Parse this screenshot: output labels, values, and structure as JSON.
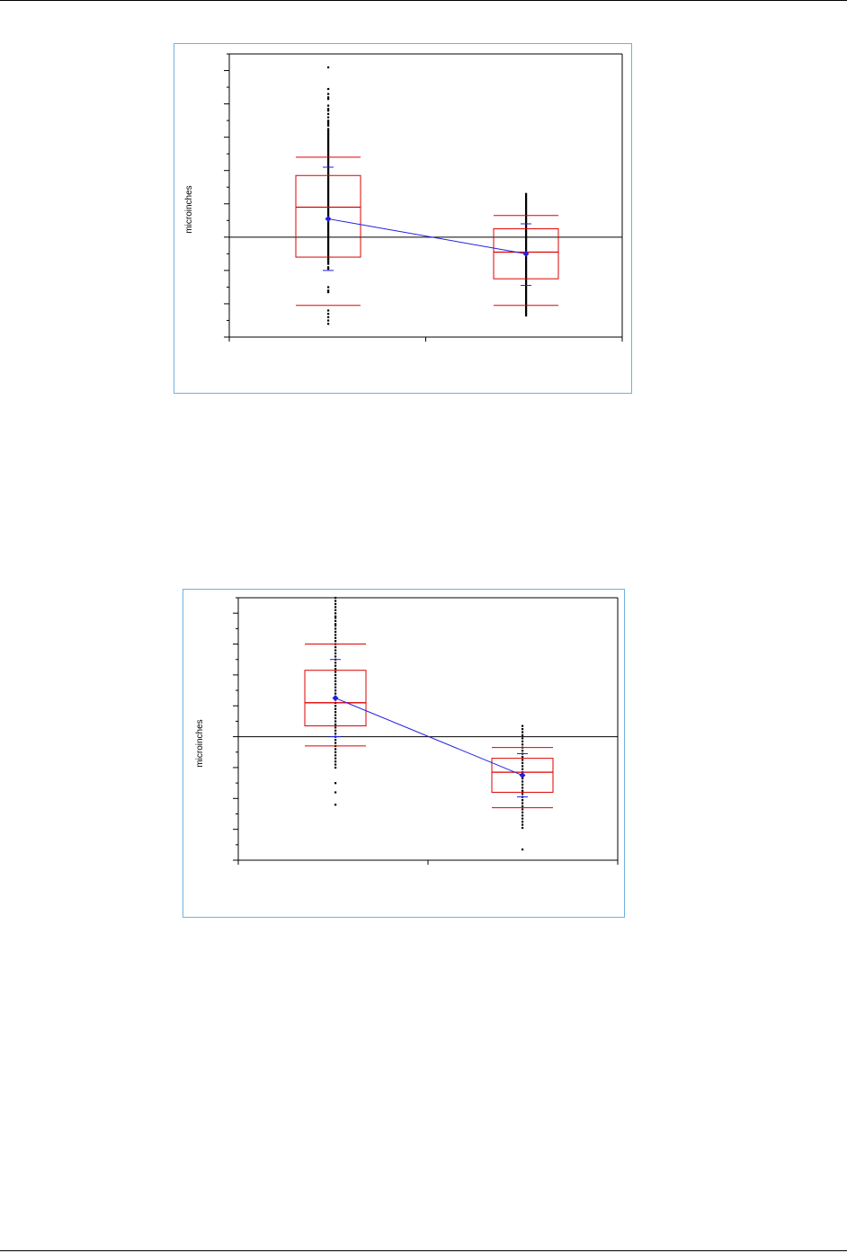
{
  "page": {
    "background": "#ffffff",
    "frame_border_color": "#6fb3dd"
  },
  "colors": {
    "box": "#dd0000",
    "mean_line": "#2020e0",
    "points": "#000000",
    "axis": "#000000"
  },
  "chart_data": [
    {
      "type": "box",
      "title": "",
      "xlabel": "",
      "ylabel": "microinches",
      "ylim": [
        -6,
        11
      ],
      "y_tick_step": 1,
      "reference_line": 0,
      "grid": false,
      "legend": "none",
      "groups": [
        {
          "q1": -1.2,
          "median": 1.8,
          "q3": 3.7,
          "whisker_low": -4.1,
          "whisker_high": 4.8,
          "mean": 1.1,
          "ci_low": -2.0,
          "ci_high": 4.2,
          "points": [
            10.2,
            8.9,
            8.6,
            8.4,
            8.3,
            7.9,
            7.7,
            7.6,
            7.4,
            7.2,
            7.0,
            6.9,
            6.8,
            6.7,
            6.5,
            6.4,
            6.3,
            6.2,
            6.1,
            6.0,
            5.9,
            5.8,
            5.7,
            5.6,
            5.5,
            5.4,
            5.3,
            5.2,
            5.1,
            5.0,
            4.9,
            4.8,
            4.7,
            4.6,
            4.5,
            4.4,
            4.3,
            4.2,
            4.1,
            4.0,
            3.9,
            3.8,
            3.7,
            3.6,
            3.5,
            3.4,
            3.3,
            3.2,
            3.1,
            3.0,
            2.9,
            2.8,
            2.7,
            2.6,
            2.5,
            2.4,
            2.3,
            2.2,
            2.1,
            2.0,
            1.9,
            1.8,
            1.7,
            1.6,
            1.5,
            1.4,
            1.3,
            1.2,
            1.1,
            1.0,
            0.9,
            0.8,
            0.7,
            0.6,
            0.5,
            0.4,
            0.3,
            0.2,
            0.1,
            0.0,
            -0.1,
            -0.2,
            -0.3,
            -0.4,
            -0.5,
            -0.6,
            -0.7,
            -0.8,
            -0.9,
            -1.0,
            -1.1,
            -1.2,
            -1.3,
            -1.4,
            -1.5,
            -1.6,
            -1.8,
            -1.9,
            -3.0,
            -3.2,
            -3.3,
            -4.4,
            -4.6,
            -4.8,
            -5.0,
            -5.2
          ]
        },
        {
          "q1": -2.5,
          "median": -0.9,
          "q3": 0.5,
          "whisker_low": -4.1,
          "whisker_high": 1.3,
          "mean": -1.0,
          "ci_low": -2.9,
          "ci_high": 0.8,
          "points": [
            2.6,
            2.5,
            2.4,
            2.3,
            2.2,
            2.1,
            2.0,
            1.9,
            1.8,
            1.7,
            1.6,
            1.5,
            1.4,
            1.3,
            1.2,
            1.1,
            1.0,
            0.9,
            0.8,
            0.7,
            0.6,
            0.5,
            0.4,
            0.3,
            0.2,
            0.1,
            0.0,
            -0.1,
            -0.2,
            -0.3,
            -0.4,
            -0.5,
            -0.6,
            -0.7,
            -0.8,
            -0.9,
            -1.0,
            -1.1,
            -1.2,
            -1.3,
            -1.4,
            -1.5,
            -1.6,
            -1.7,
            -1.8,
            -1.9,
            -2.0,
            -2.1,
            -2.2,
            -2.3,
            -2.4,
            -2.5,
            -2.6,
            -2.7,
            -2.8,
            -2.9,
            -3.0,
            -3.1,
            -3.2,
            -3.3,
            -3.4,
            -3.5,
            -3.6,
            -3.7,
            -3.8,
            -3.9,
            -4.0,
            -4.1,
            -4.2,
            -4.3,
            -4.4,
            -4.5,
            -4.6,
            -4.7
          ]
        }
      ]
    },
    {
      "type": "box",
      "title": "",
      "xlabel": "",
      "ylabel": "microinches",
      "ylim": [
        -8,
        9
      ],
      "y_tick_step": 1,
      "reference_line": 0,
      "grid": false,
      "legend": "none",
      "groups": [
        {
          "q1": 0.7,
          "median": 2.2,
          "q3": 4.3,
          "whisker_low": -0.6,
          "whisker_high": 6.0,
          "mean": 2.5,
          "ci_low": 0.0,
          "ci_high": 5.0,
          "points": [
            9.0,
            8.8,
            8.6,
            8.4,
            8.2,
            8.0,
            7.8,
            7.7,
            7.5,
            7.3,
            7.2,
            7.0,
            6.8,
            6.6,
            6.4,
            6.2,
            6.0,
            5.8,
            5.6,
            5.4,
            5.2,
            5.0,
            4.8,
            4.6,
            4.4,
            4.2,
            4.0,
            3.8,
            3.6,
            3.4,
            3.2,
            3.0,
            2.8,
            2.6,
            2.4,
            2.2,
            2.0,
            1.8,
            1.6,
            1.4,
            1.2,
            1.0,
            0.8,
            0.6,
            0.4,
            0.2,
            0.0,
            -0.2,
            -0.4,
            -0.6,
            -0.8,
            -1.0,
            -1.2,
            -1.4,
            -1.6,
            -1.8,
            -2.0,
            -3.0,
            -3.6,
            -4.4
          ]
        },
        {
          "q1": -3.6,
          "median": -2.3,
          "q3": -1.4,
          "whisker_low": -4.6,
          "whisker_high": -0.7,
          "mean": -2.5,
          "ci_low": -3.9,
          "ci_high": -1.1,
          "points": [
            0.7,
            0.5,
            0.3,
            0.1,
            -0.1,
            -0.3,
            -0.5,
            -0.7,
            -0.9,
            -1.1,
            -1.3,
            -1.5,
            -1.7,
            -1.9,
            -2.1,
            -2.3,
            -2.5,
            -2.7,
            -2.9,
            -3.1,
            -3.3,
            -3.5,
            -3.7,
            -3.9,
            -4.1,
            -4.3,
            -4.5,
            -4.7,
            -4.9,
            -5.1,
            -5.3,
            -5.5,
            -5.7,
            -5.9,
            -7.3
          ]
        }
      ]
    }
  ]
}
